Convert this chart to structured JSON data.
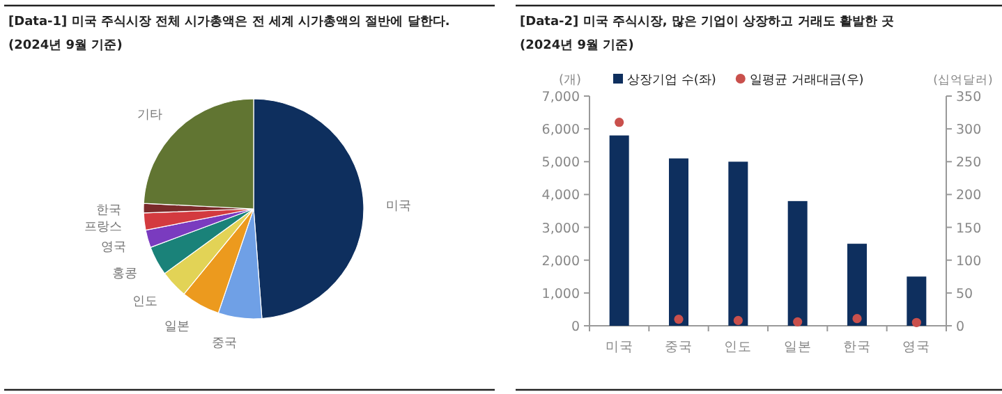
{
  "chart_data": [
    {
      "type": "pie",
      "title": "[Data-1] 미국 주식시장 전체 시가총액은 전 세계 시가총액의 절반에 달한다.",
      "subtitle": "(2024년 9월 기준)",
      "categories": [
        "미국",
        "중국",
        "일본",
        "인도",
        "홍콩",
        "영국",
        "프랑스",
        "한국",
        "기타"
      ],
      "values": [
        48.8,
        6.4,
        5.7,
        4.1,
        4.3,
        2.6,
        2.5,
        1.4,
        24.2
      ],
      "colors": [
        "#0e2f5e",
        "#6fa0e6",
        "#ec9a1e",
        "#e2d356",
        "#1a8279",
        "#7a3bbf",
        "#d33a3f",
        "#7a2a2a",
        "#617532"
      ]
    },
    {
      "type": "bar",
      "title": "[Data-2] 미국 주식시장, 많은 기업이 상장하고 거래도 활발한 곳",
      "subtitle": "(2024년 9월 기준)",
      "ylabel": "(개)",
      "y2label": "(십억달러)",
      "legend": "top",
      "marker": "circle",
      "categories": [
        "미국",
        "중국",
        "인도",
        "일본",
        "한국",
        "영국"
      ],
      "series": [
        {
          "name": "상장기업 수(좌)",
          "type": "bar",
          "color": "#0e2f5e",
          "values": [
            5800,
            5100,
            5000,
            3800,
            2500,
            1500
          ]
        },
        {
          "name": "일평균 거래대금(우)",
          "type": "scatter",
          "axis": "y2",
          "color": "#c9504c",
          "values": [
            310,
            10,
            8,
            6,
            11,
            5
          ]
        }
      ],
      "ylim": [
        0,
        7000
      ],
      "yticks": [
        {
          "value": 0,
          "label": "0"
        },
        {
          "value": 1000,
          "label": "1,000"
        },
        {
          "value": 2000,
          "label": "2,000"
        },
        {
          "value": 3000,
          "label": "3,000"
        },
        {
          "value": 4000,
          "label": "4,000"
        },
        {
          "value": 5000,
          "label": "5,000"
        },
        {
          "value": 6000,
          "label": "6,000"
        },
        {
          "value": 7000,
          "label": "7,000"
        }
      ],
      "y2lim": [
        0,
        350
      ],
      "y2ticks": [
        0,
        50,
        100,
        150,
        200,
        250,
        300,
        350
      ]
    }
  ]
}
